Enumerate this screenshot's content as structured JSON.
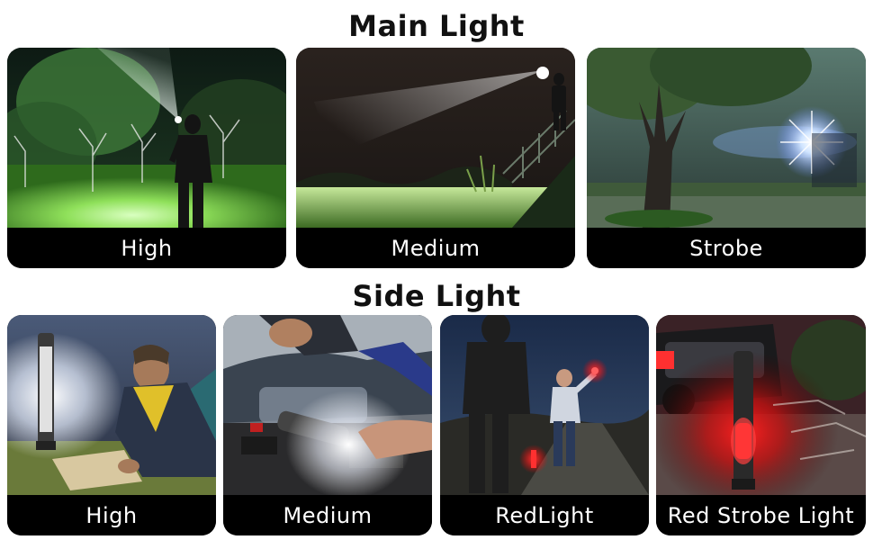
{
  "main_section": {
    "heading": "Main Light",
    "cards": [
      {
        "label": "High"
      },
      {
        "label": "Medium"
      },
      {
        "label": "Strobe"
      }
    ]
  },
  "side_section": {
    "heading": "Side Light",
    "cards": [
      {
        "label": "High"
      },
      {
        "label": "Medium"
      },
      {
        "label": "RedLight"
      },
      {
        "label": "Red Strobe Light"
      }
    ]
  },
  "colors": {
    "caption_background": "#000000",
    "caption_text": "#ffffff",
    "heading_text": "#111111",
    "beam_white": "#f4fbff",
    "grass_green": "#7ed04a",
    "red_light": "#ff1a1a"
  }
}
